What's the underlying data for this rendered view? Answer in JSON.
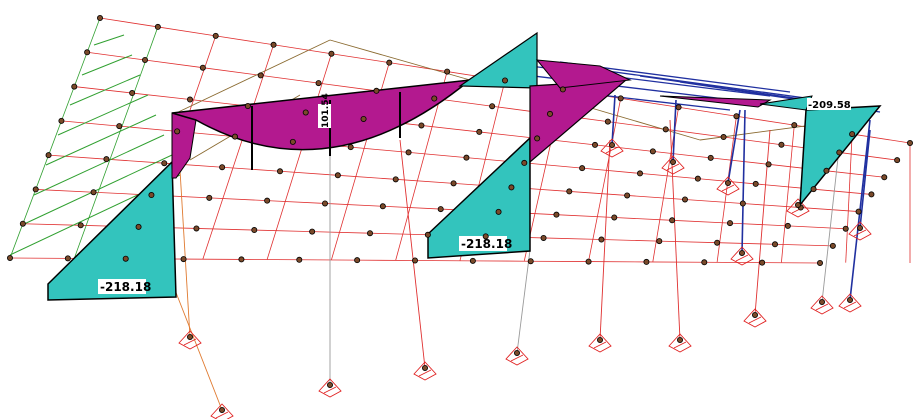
{
  "moment_labels": [
    "-218.18",
    "-218.18",
    "-209.58",
    "101.54"
  ]
}
